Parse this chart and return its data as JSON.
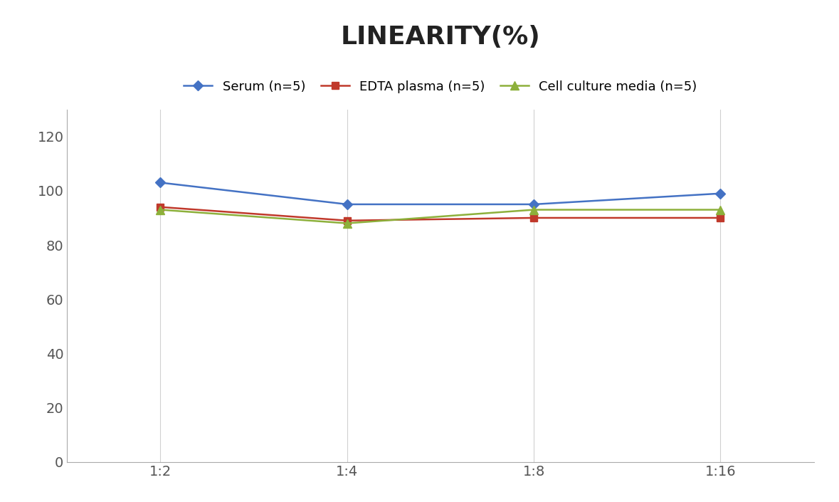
{
  "title": "LINEARITY(%)",
  "x_labels": [
    "1:2",
    "1:4",
    "1:8",
    "1:16"
  ],
  "x_positions": [
    0,
    1,
    2,
    3
  ],
  "series": [
    {
      "label": "Serum (n=5)",
      "values": [
        103,
        95,
        95,
        99
      ],
      "color": "#4472C4",
      "marker": "D",
      "marker_size": 7,
      "linewidth": 1.8
    },
    {
      "label": "EDTA plasma (n=5)",
      "values": [
        94,
        89,
        90,
        90
      ],
      "color": "#C0392B",
      "marker": "s",
      "marker_size": 7,
      "linewidth": 1.8
    },
    {
      "label": "Cell culture media (n=5)",
      "values": [
        93,
        88,
        93,
        93
      ],
      "color": "#8DB03B",
      "marker": "^",
      "marker_size": 8,
      "linewidth": 1.8
    }
  ],
  "ylim": [
    0,
    130
  ],
  "yticks": [
    0,
    20,
    40,
    60,
    80,
    100,
    120
  ],
  "title_fontsize": 26,
  "legend_fontsize": 13,
  "tick_fontsize": 14,
  "background_color": "#ffffff",
  "grid_color": "#d0d0d0"
}
